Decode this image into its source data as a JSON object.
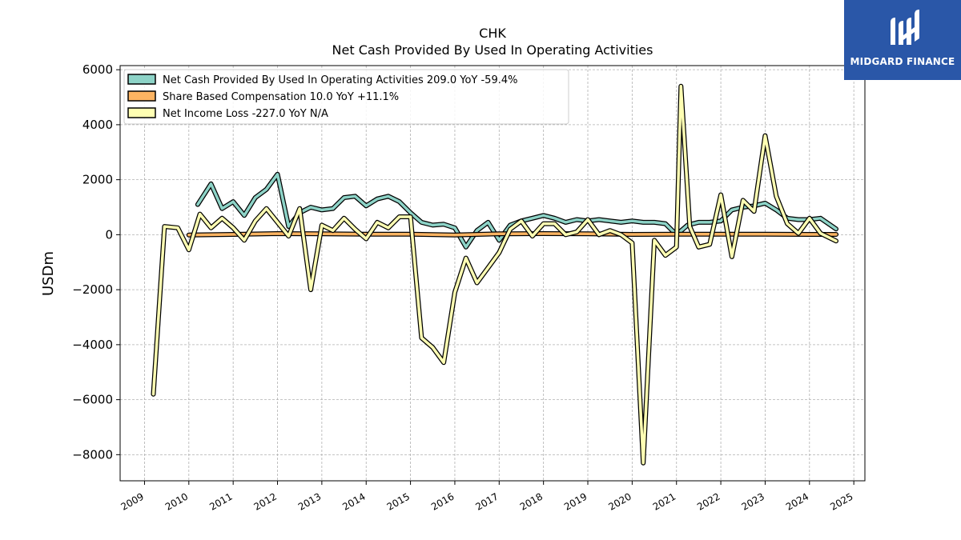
{
  "logo": {
    "brand_text": "MIDGARD FINANCE",
    "icon": "midgard-logo-icon",
    "background": "#2a57a8"
  },
  "chart_data": {
    "type": "line",
    "title": "CHK",
    "subtitle": "Net Cash Provided By Used In Operating Activities",
    "xlabel": "",
    "ylabel": "USDm",
    "xlim": [
      2008.45,
      2025.25
    ],
    "ylim": [
      -8950,
      6150
    ],
    "grid": true,
    "legend_position": "top-left",
    "yticks": [
      6000,
      4000,
      2000,
      0,
      -2000,
      -4000,
      -6000,
      -8000
    ],
    "ytick_labels": [
      "6000",
      "4000",
      "2000",
      "0",
      "−2000",
      "−4000",
      "−6000",
      "−8000"
    ],
    "xticks": [
      2009,
      2010,
      2011,
      2012,
      2013,
      2014,
      2015,
      2016,
      2017,
      2018,
      2019,
      2020,
      2021,
      2022,
      2023,
      2024,
      2025
    ],
    "xtick_labels": [
      "2009",
      "2010",
      "2011",
      "2012",
      "2013",
      "2014",
      "2015",
      "2016",
      "2017",
      "2018",
      "2019",
      "2020",
      "2021",
      "2022",
      "2023",
      "2024",
      "2025"
    ],
    "series": [
      {
        "name": "Net Cash Provided By Used In Operating Activities",
        "legend_label": "Net Cash Provided By Used In Operating Activities  209.0 YoY -59.4%",
        "color": "#8dd3c7",
        "points": [
          [
            2010.2,
            1100
          ],
          [
            2010.5,
            1850
          ],
          [
            2010.75,
            950
          ],
          [
            2011.0,
            1200
          ],
          [
            2011.25,
            700
          ],
          [
            2011.5,
            1350
          ],
          [
            2011.75,
            1650
          ],
          [
            2012.0,
            2200
          ],
          [
            2012.25,
            300
          ],
          [
            2012.5,
            800
          ],
          [
            2012.75,
            1000
          ],
          [
            2013.0,
            900
          ],
          [
            2013.25,
            950
          ],
          [
            2013.5,
            1350
          ],
          [
            2013.75,
            1400
          ],
          [
            2014.0,
            1050
          ],
          [
            2014.25,
            1300
          ],
          [
            2014.5,
            1400
          ],
          [
            2014.75,
            1200
          ],
          [
            2015.0,
            800
          ],
          [
            2015.25,
            450
          ],
          [
            2015.5,
            350
          ],
          [
            2015.75,
            380
          ],
          [
            2016.0,
            250
          ],
          [
            2016.25,
            -450
          ],
          [
            2016.5,
            150
          ],
          [
            2016.75,
            450
          ],
          [
            2017.0,
            -200
          ],
          [
            2017.25,
            350
          ],
          [
            2017.5,
            500
          ],
          [
            2017.75,
            600
          ],
          [
            2018.0,
            700
          ],
          [
            2018.25,
            600
          ],
          [
            2018.5,
            450
          ],
          [
            2018.75,
            550
          ],
          [
            2019.0,
            500
          ],
          [
            2019.25,
            550
          ],
          [
            2019.5,
            500
          ],
          [
            2019.75,
            450
          ],
          [
            2020.0,
            500
          ],
          [
            2020.25,
            450
          ],
          [
            2020.5,
            450
          ],
          [
            2020.75,
            400
          ],
          [
            2021.0,
            0
          ],
          [
            2021.25,
            350
          ],
          [
            2021.5,
            450
          ],
          [
            2021.75,
            450
          ],
          [
            2022.0,
            500
          ],
          [
            2022.25,
            900
          ],
          [
            2022.5,
            1000
          ],
          [
            2022.75,
            1050
          ],
          [
            2023.0,
            1150
          ],
          [
            2023.25,
            900
          ],
          [
            2023.5,
            600
          ],
          [
            2023.75,
            550
          ],
          [
            2024.0,
            550
          ],
          [
            2024.25,
            600
          ],
          [
            2024.6,
            209
          ]
        ]
      },
      {
        "name": "Share Based Compensation",
        "legend_label": "Share Based Compensation  10.0 YoY +11.1%",
        "color": "#fdb462",
        "points": [
          [
            2010.0,
            -10
          ],
          [
            2011.0,
            10
          ],
          [
            2012.0,
            40
          ],
          [
            2013.0,
            30
          ],
          [
            2014.0,
            20
          ],
          [
            2015.0,
            20
          ],
          [
            2016.0,
            -10
          ],
          [
            2017.0,
            30
          ],
          [
            2018.0,
            40
          ],
          [
            2019.0,
            30
          ],
          [
            2020.0,
            10
          ],
          [
            2021.0,
            20
          ],
          [
            2022.0,
            20
          ],
          [
            2023.0,
            20
          ],
          [
            2024.0,
            10
          ],
          [
            2024.6,
            10
          ]
        ]
      },
      {
        "name": "Net Income Loss",
        "legend_label": "Net Income Loss  -227.0 YoY N/A",
        "color": "#ffffb3",
        "points": [
          [
            2009.2,
            -5800
          ],
          [
            2009.45,
            300
          ],
          [
            2009.75,
            250
          ],
          [
            2010.0,
            -550
          ],
          [
            2010.25,
            750
          ],
          [
            2010.5,
            250
          ],
          [
            2010.75,
            600
          ],
          [
            2011.0,
            250
          ],
          [
            2011.25,
            -200
          ],
          [
            2011.5,
            500
          ],
          [
            2011.75,
            950
          ],
          [
            2012.0,
            450
          ],
          [
            2012.25,
            -50
          ],
          [
            2012.5,
            950
          ],
          [
            2012.75,
            -2000
          ],
          [
            2013.0,
            350
          ],
          [
            2013.25,
            150
          ],
          [
            2013.5,
            600
          ],
          [
            2013.75,
            200
          ],
          [
            2014.0,
            -150
          ],
          [
            2014.25,
            450
          ],
          [
            2014.5,
            250
          ],
          [
            2014.75,
            650
          ],
          [
            2015.0,
            650
          ],
          [
            2015.25,
            -3750
          ],
          [
            2015.5,
            -4100
          ],
          [
            2015.75,
            -4650
          ],
          [
            2016.0,
            -2100
          ],
          [
            2016.25,
            -850
          ],
          [
            2016.5,
            -1750
          ],
          [
            2016.75,
            -1200
          ],
          [
            2017.0,
            -650
          ],
          [
            2017.25,
            200
          ],
          [
            2017.5,
            500
          ],
          [
            2017.75,
            -50
          ],
          [
            2018.0,
            400
          ],
          [
            2018.25,
            400
          ],
          [
            2018.5,
            0
          ],
          [
            2018.75,
            100
          ],
          [
            2019.0,
            550
          ],
          [
            2019.25,
            0
          ],
          [
            2019.5,
            150
          ],
          [
            2019.75,
            0
          ],
          [
            2020.0,
            -300
          ],
          [
            2020.25,
            -8300
          ],
          [
            2020.5,
            -200
          ],
          [
            2020.75,
            -750
          ],
          [
            2021.0,
            -450
          ],
          [
            2021.1,
            5400
          ],
          [
            2021.3,
            300
          ],
          [
            2021.5,
            -450
          ],
          [
            2021.75,
            -350
          ],
          [
            2022.0,
            1450
          ],
          [
            2022.25,
            -800
          ],
          [
            2022.5,
            1250
          ],
          [
            2022.75,
            850
          ],
          [
            2023.0,
            3600
          ],
          [
            2023.25,
            1400
          ],
          [
            2023.5,
            400
          ],
          [
            2023.75,
            50
          ],
          [
            2024.0,
            600
          ],
          [
            2024.25,
            50
          ],
          [
            2024.6,
            -227
          ]
        ]
      }
    ]
  }
}
